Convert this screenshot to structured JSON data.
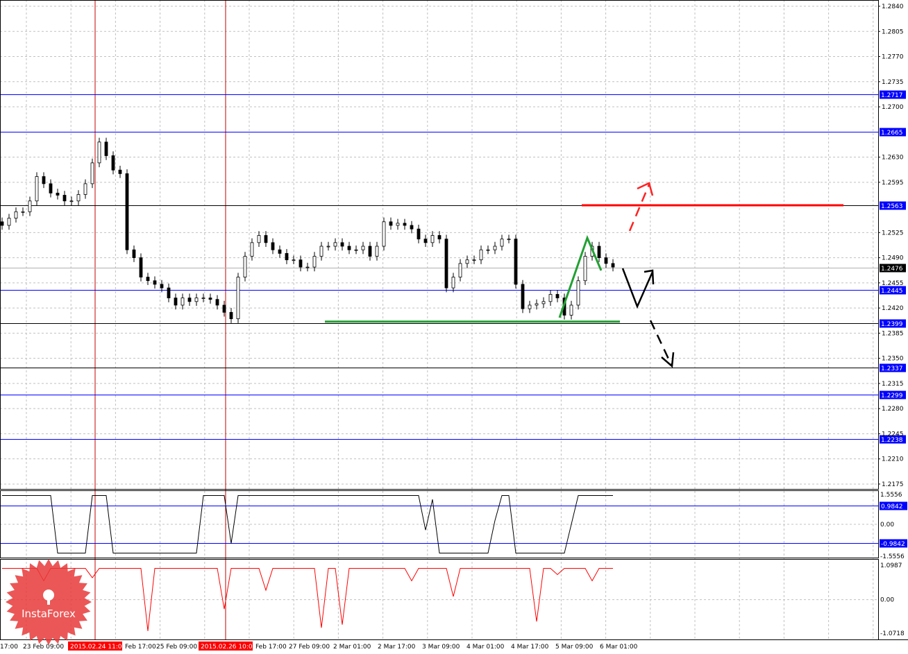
{
  "chart_data": {
    "type": "candlestick",
    "symbol_timeframe": "H1",
    "price_axis": {
      "ticks": [
        "1.2840",
        "1.2805",
        "1.2770",
        "1.2735",
        "1.2700",
        "1.2630",
        "1.2595",
        "1.2525",
        "1.2490",
        "1.2455",
        "1.2420",
        "1.2385",
        "1.2350",
        "1.2315",
        "1.2280",
        "1.2245",
        "1.2210",
        "1.2175"
      ],
      "ylim": [
        1.2175,
        1.284
      ]
    },
    "time_axis": {
      "ticks": [
        "17:00",
        "23 Feb 09:00",
        "Feb 17:00",
        "25 Feb 09:00",
        "Feb 17:00",
        "27 Feb 09:00",
        "2 Mar 01:00",
        "2 Mar 17:00",
        "3 Mar 09:00",
        "4 Mar 01:00",
        "4 Mar 17:00",
        "5 Mar 09:00",
        "6 Mar 01:00"
      ],
      "highlighted": [
        "2015.02.24 11:00",
        "2015.02.26 10:00"
      ]
    },
    "close": [
      1.2535,
      1.2545,
      1.2554,
      1.2554,
      1.2569,
      1.2603,
      1.2593,
      1.258,
      1.2577,
      1.2569,
      1.2569,
      1.2578,
      1.2593,
      1.2622,
      1.2651,
      1.2632,
      1.2612,
      1.2607,
      1.2501,
      1.249,
      1.2463,
      1.2458,
      1.2453,
      1.2448,
      1.2434,
      1.2424,
      1.2434,
      1.2429,
      1.2434,
      1.2434,
      1.2432,
      1.2424,
      1.2414,
      1.2405,
      1.2463,
      1.2492,
      1.2511,
      1.2521,
      1.2511,
      1.2501,
      1.2496,
      1.2487,
      1.2487,
      1.2477,
      1.2477,
      1.2492,
      1.2506,
      1.2506,
      1.2511,
      1.2506,
      1.2501,
      1.2501,
      1.2506,
      1.2492,
      1.2506,
      1.254,
      1.2535,
      1.2538,
      1.2535,
      1.253,
      1.2516,
      1.2511,
      1.2521,
      1.2516,
      1.2448,
      1.2463,
      1.2482,
      1.2487,
      1.2487,
      1.2501,
      1.2501,
      1.2506,
      1.2516,
      1.2516,
      1.2453,
      1.2419,
      1.2424,
      1.2426,
      1.2429,
      1.2439,
      1.2434,
      1.241,
      1.2424,
      1.2458,
      1.2492,
      1.2506,
      1.249,
      1.2482,
      1.2477
    ],
    "current_price": "1.2476",
    "levels": [
      {
        "value": "1.2717",
        "color": "#0000ff"
      },
      {
        "value": "1.2665",
        "color": "#0000ff"
      },
      {
        "value": "1.2563",
        "color": "#000000"
      },
      {
        "value": "1.2445",
        "color": "#0000ff"
      },
      {
        "value": "1.2399",
        "color": "#000000"
      },
      {
        "value": "1.2337",
        "color": "#000000"
      },
      {
        "value": "1.2299",
        "color": "#0000ff"
      },
      {
        "value": "1.2238",
        "color": "#0000ff"
      }
    ],
    "resistance_line": {
      "value": 1.2563,
      "color": "#ff0000"
    },
    "support_line": {
      "value": 1.2401,
      "color": "#22a033"
    },
    "indicator1": {
      "ticks": [
        "1.5556",
        "0.00",
        "-1.5556"
      ],
      "levels": [
        "0.9842",
        "-0.9842"
      ],
      "ylim": [
        -1.5556,
        1.5556
      ],
      "values": [
        1.5,
        1.5,
        1.5,
        1.5,
        1.5,
        1.5,
        1.5,
        1.5,
        -1.5,
        -1.5,
        -1.5,
        -1.5,
        -1.5,
        1.5,
        1.5,
        1.5,
        -1.5,
        -1.5,
        -1.5,
        -1.5,
        -1.5,
        -1.5,
        -1.5,
        -1.5,
        -1.5,
        -1.5,
        -1.5,
        -1.5,
        -1.5,
        1.5,
        1.5,
        1.5,
        1.5,
        -1.0,
        1.5,
        1.5,
        1.5,
        1.5,
        1.5,
        1.5,
        1.5,
        1.5,
        1.5,
        1.5,
        1.5,
        1.5,
        1.5,
        1.5,
        1.5,
        1.5,
        1.5,
        1.5,
        1.5,
        1.5,
        1.5,
        1.5,
        1.5,
        1.5,
        1.5,
        1.5,
        1.5,
        -0.3,
        1.3,
        -1.5,
        -1.5,
        -1.5,
        -1.5,
        -1.5,
        -1.5,
        -1.5,
        -1.5,
        0.2,
        1.5,
        1.5,
        -1.5,
        -1.5,
        -1.5,
        -1.5,
        -1.5,
        -1.5,
        -1.5,
        -1.5,
        0.0,
        1.5,
        1.5,
        1.5,
        1.5,
        1.5,
        1.5
      ]
    },
    "indicator2": {
      "ticks": [
        "1.0987",
        "0.00",
        "-1.0718"
      ],
      "ylim": [
        -1.0718,
        1.0987
      ],
      "color": "#ff0000",
      "values": [
        1,
        1,
        1,
        1,
        1,
        1,
        0.6,
        1,
        1,
        1,
        1,
        1,
        1,
        0.7,
        1,
        1,
        1,
        1,
        1,
        1,
        1,
        -1.0,
        1,
        1,
        1,
        1,
        1,
        1,
        1,
        1,
        1,
        1,
        -0.3,
        1,
        1,
        1,
        1,
        1,
        0.3,
        1,
        1,
        1,
        1,
        1,
        1,
        1,
        -0.9,
        1,
        1,
        -0.8,
        1,
        1,
        1,
        1,
        1,
        1,
        1,
        1,
        1,
        0.6,
        1,
        1,
        1,
        1,
        1,
        0.1,
        1,
        1,
        1,
        1,
        1,
        1,
        1,
        1,
        1,
        1,
        1,
        -0.7,
        1,
        1,
        0.8,
        1,
        1,
        1,
        1,
        0.6,
        1,
        1,
        1
      ]
    }
  },
  "logo": {
    "text": "InstaForex"
  }
}
